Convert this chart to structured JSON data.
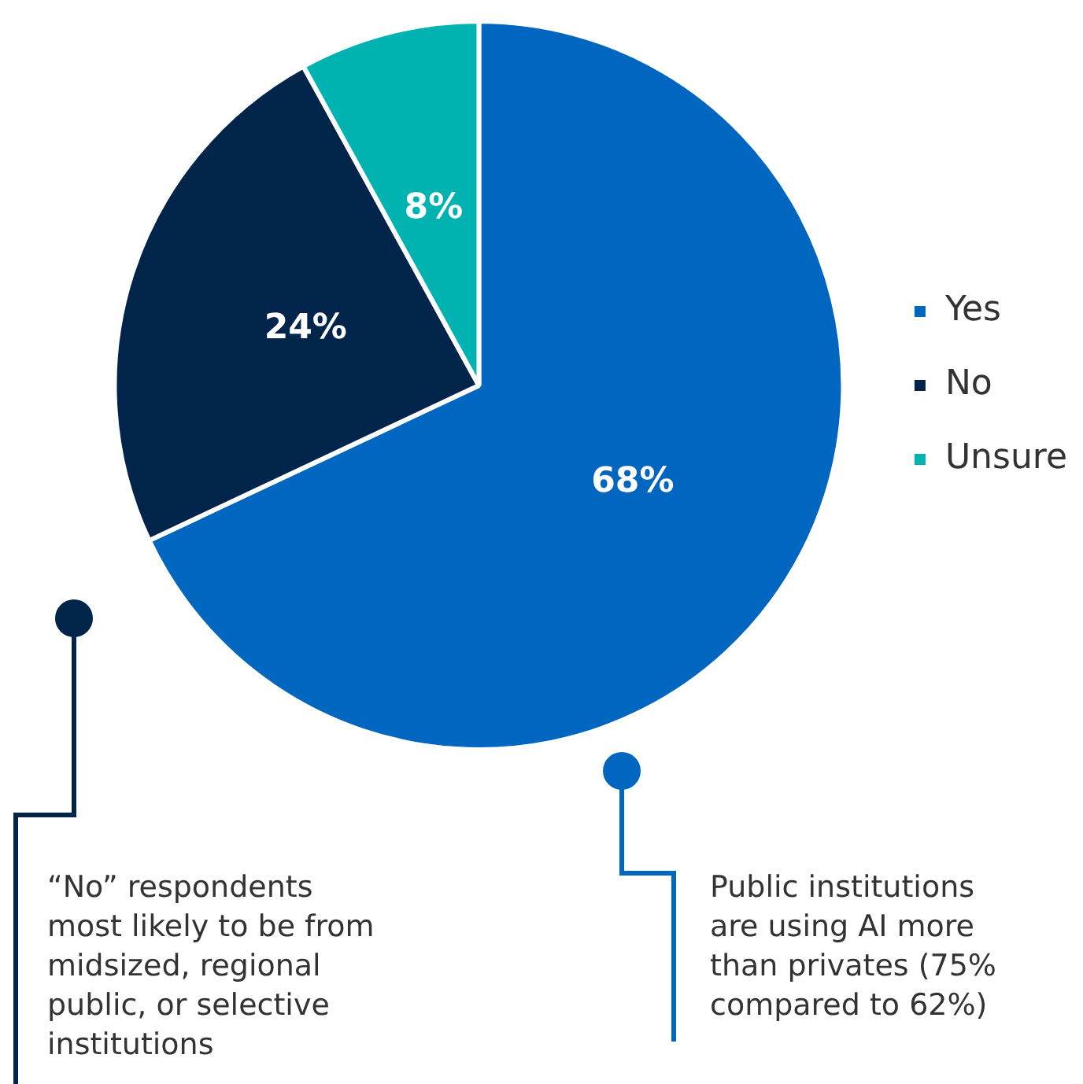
{
  "chart_data": {
    "type": "pie",
    "categories": [
      "Yes",
      "No",
      "Unsure"
    ],
    "values": [
      68,
      24,
      8
    ],
    "colors": [
      "#0066c0",
      "#00244a",
      "#00b2b0"
    ],
    "value_labels": [
      "68%",
      "24%",
      "8%"
    ],
    "legend": "right",
    "annotations": [
      "“No” respondents most likely to be from midsized, regional public, or selective institutions",
      "Public institutions are using AI more than privates (75% compared to 62%)"
    ]
  }
}
